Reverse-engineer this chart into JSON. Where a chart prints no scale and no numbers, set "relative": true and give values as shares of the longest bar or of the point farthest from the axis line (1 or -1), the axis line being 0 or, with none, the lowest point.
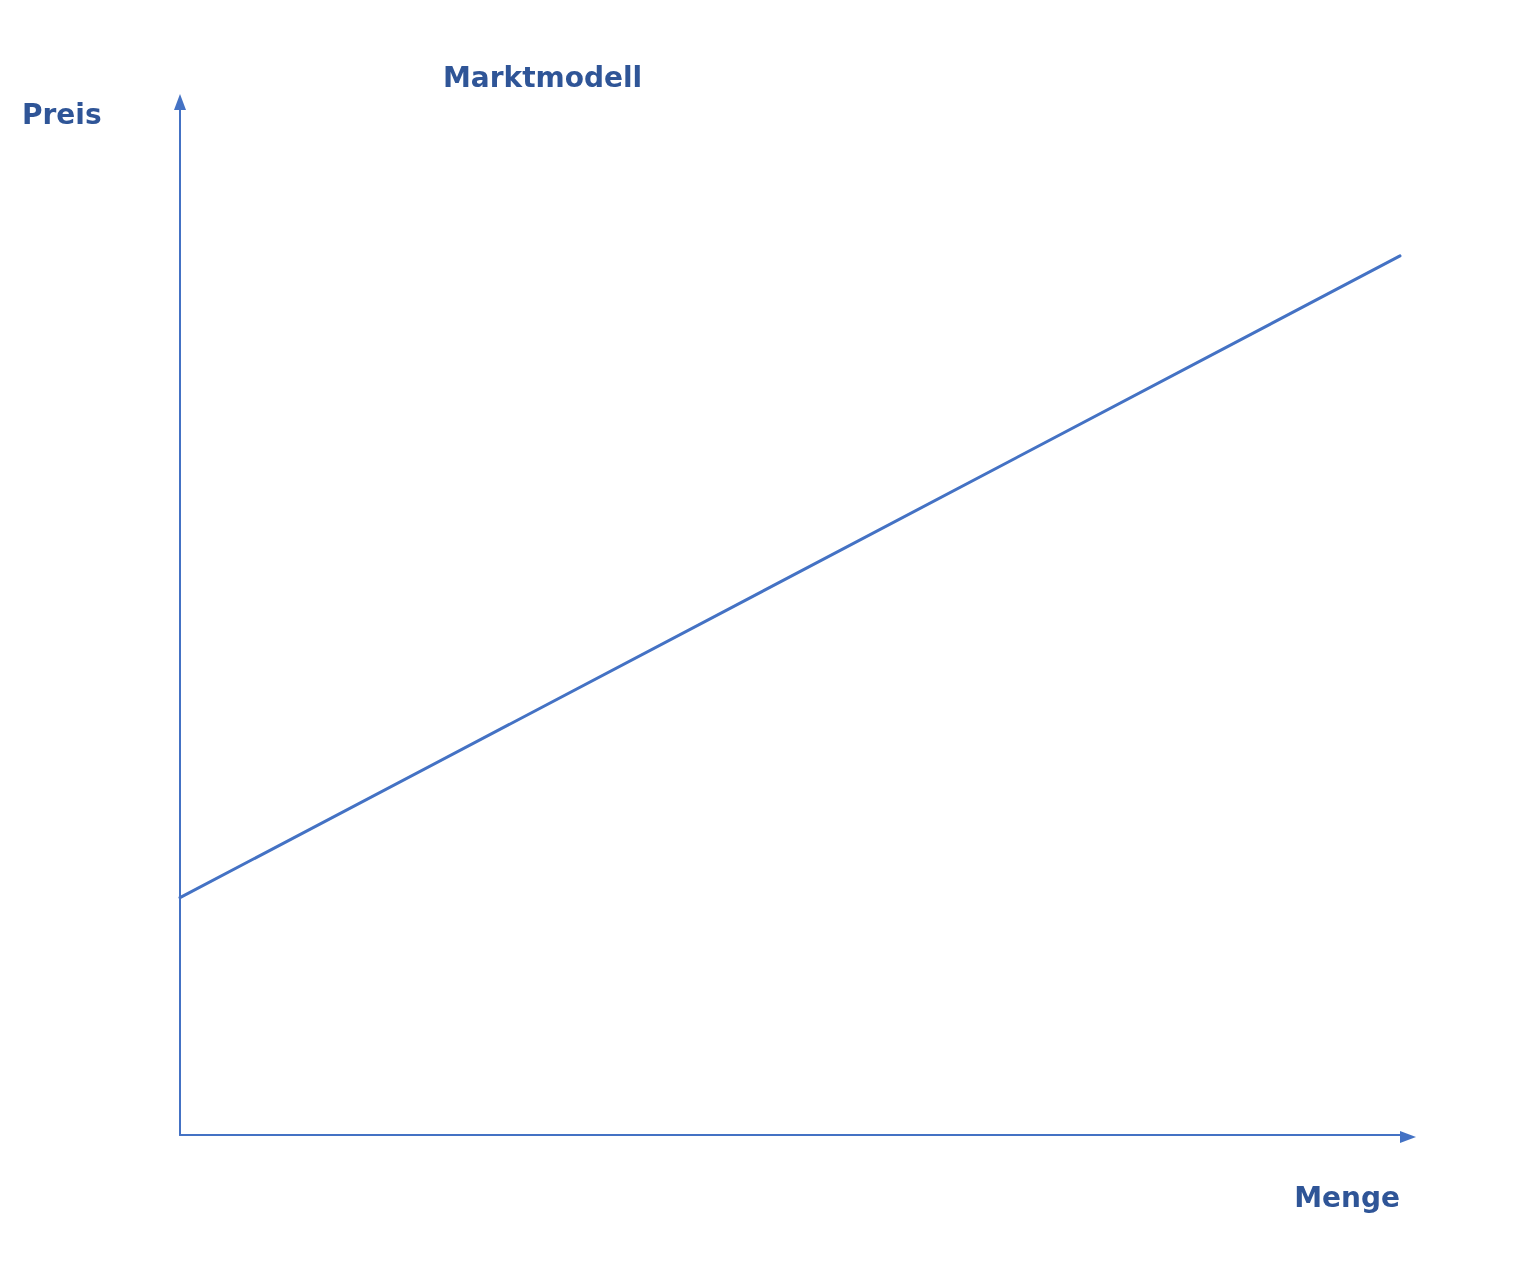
{
  "chart_data": {
    "type": "line",
    "title": "Marktmodell",
    "xlabel": "Menge",
    "ylabel": "Preis",
    "relative": true,
    "categories": [
      null,
      null
    ],
    "series": [
      {
        "color": "#4472c4",
        "values": [
          0.27,
          1
        ]
      }
    ],
    "grid": false,
    "marker": "none",
    "line_style": "solid"
  }
}
